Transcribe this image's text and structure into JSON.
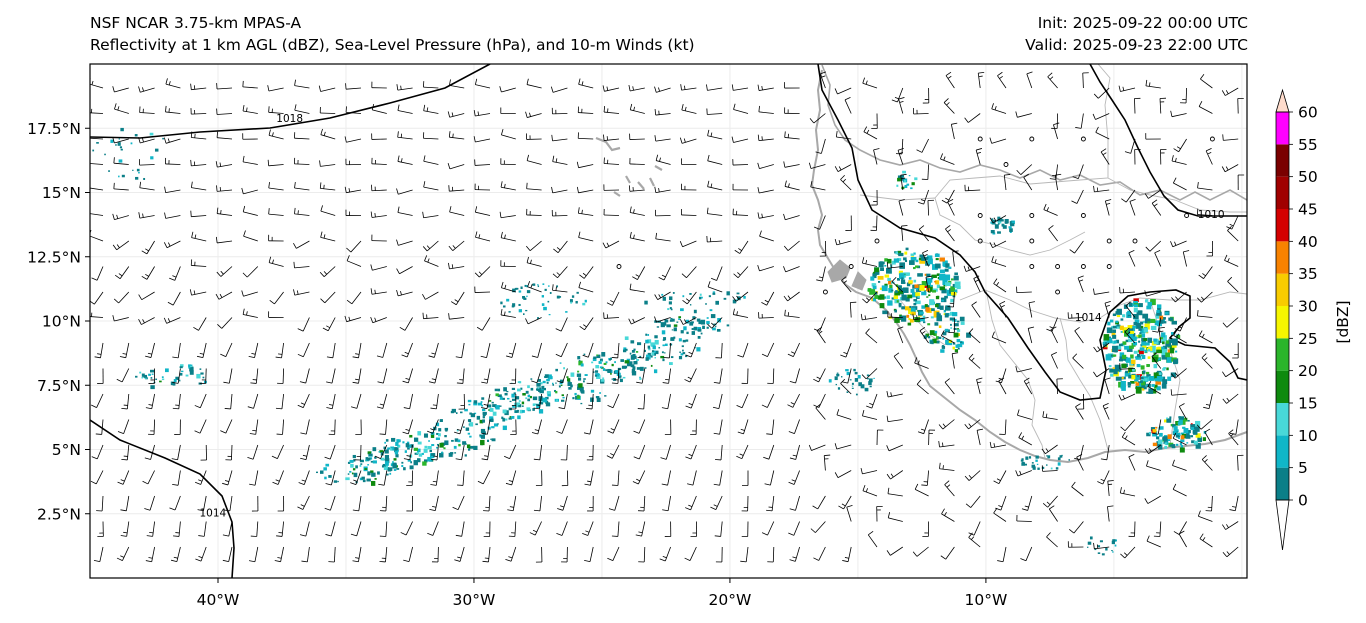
{
  "header": {
    "title_left": "NSF NCAR 3.75-km MPAS-A",
    "subtitle_left": "Reflectivity at 1 km AGL (dBZ), Sea-Level Pressure (hPa), and 10-m Winds (kt)",
    "init": "Init: 2025-09-22 00:00 UTC",
    "valid": "Valid: 2025-09-23 22:00 UTC"
  },
  "map": {
    "lon_range": [
      -45,
      0.2
    ],
    "lat_range": [
      0,
      20
    ],
    "lat_ticks": [
      {
        "lat": 17.5,
        "label": "17.5°N"
      },
      {
        "lat": 15,
        "label": "15°N"
      },
      {
        "lat": 12.5,
        "label": "12.5°N"
      },
      {
        "lat": 10,
        "label": "10°N"
      },
      {
        "lat": 7.5,
        "label": "7.5°N"
      },
      {
        "lat": 5,
        "label": "5°N"
      },
      {
        "lat": 2.5,
        "label": "2.5°N"
      }
    ],
    "lon_ticks": [
      {
        "lon": -40,
        "label": "40°W"
      },
      {
        "lon": -30,
        "label": "30°W"
      },
      {
        "lon": -20,
        "label": "20°W"
      },
      {
        "lon": -10,
        "label": "10°W"
      }
    ],
    "isobar_labels": [
      {
        "text": "1018",
        "lon": -37.2,
        "lat": 17.75
      },
      {
        "text": "1010",
        "lon": -1.2,
        "lat": 14.0
      },
      {
        "text": "1014",
        "lon": -40.2,
        "lat": 2.4
      },
      {
        "text": "1014",
        "lon": -6.0,
        "lat": 10.0
      }
    ],
    "grid": true
  },
  "colorbar": {
    "label": "[dBZ]",
    "ticks": [
      "0",
      "5",
      "10",
      "15",
      "20",
      "25",
      "30",
      "35",
      "40",
      "45",
      "50",
      "55",
      "60"
    ],
    "colors": [
      "#ffffff",
      "#0b7f88",
      "#10b6c8",
      "#48d8d8",
      "#0e8a0e",
      "#2bb52b",
      "#f6f600",
      "#f8cc00",
      "#f88200",
      "#d40000",
      "#a00000",
      "#7a0000",
      "#ff00ff",
      "#ffdccc"
    ]
  },
  "palette": {
    "coast": "#a8a8a8",
    "border": "#b8b8b8",
    "isobar": "#000000",
    "barb": "#000000"
  }
}
